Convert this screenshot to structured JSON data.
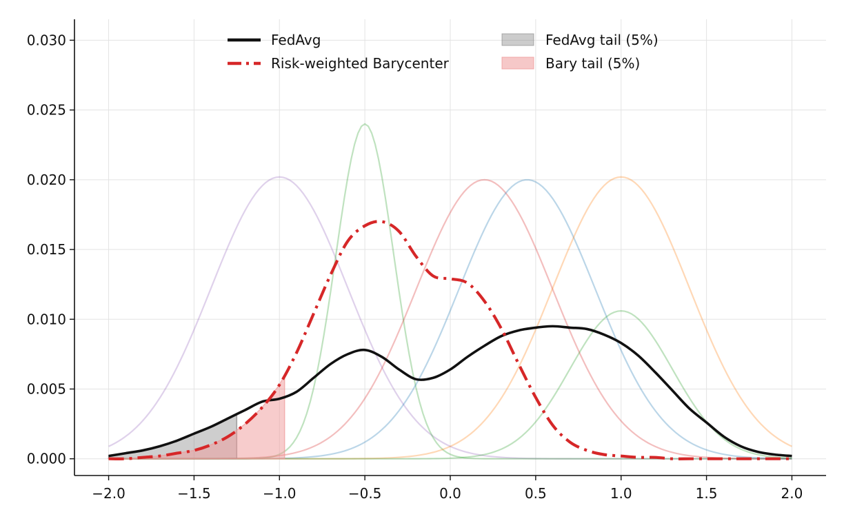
{
  "chart_data": {
    "type": "line",
    "title": "",
    "xlabel": "",
    "ylabel": "",
    "xlim": [
      -2.2,
      2.2
    ],
    "ylim": [
      -0.0012,
      0.0315
    ],
    "xticks": [
      -2.0,
      -1.5,
      -1.0,
      -0.5,
      0.0,
      0.5,
      1.0,
      1.5,
      2.0
    ],
    "xtick_labels": [
      "−2.0",
      "−1.5",
      "−1.0",
      "−0.5",
      "0.0",
      "0.5",
      "1.0",
      "1.5",
      "2.0"
    ],
    "yticks": [
      0.0,
      0.005,
      0.01,
      0.015,
      0.02,
      0.025,
      0.03
    ],
    "ytick_labels": [
      "0.000",
      "0.005",
      "0.010",
      "0.015",
      "0.020",
      "0.025",
      "0.030"
    ],
    "grid": true,
    "legend_position": "top-center",
    "series": [
      {
        "name": "FedAvg",
        "style": "solid",
        "color": "#111111",
        "x": [
          -2.0,
          -1.9,
          -1.8,
          -1.7,
          -1.6,
          -1.5,
          -1.4,
          -1.3,
          -1.2,
          -1.1,
          -1.0,
          -0.9,
          -0.8,
          -0.7,
          -0.6,
          -0.5,
          -0.4,
          -0.3,
          -0.2,
          -0.1,
          0.0,
          0.1,
          0.2,
          0.3,
          0.4,
          0.5,
          0.6,
          0.7,
          0.8,
          0.9,
          1.0,
          1.1,
          1.2,
          1.3,
          1.4,
          1.5,
          1.6,
          1.7,
          1.8,
          1.9,
          2.0
        ],
        "y": [
          0.0002,
          0.0004,
          0.0006,
          0.0009,
          0.0013,
          0.0018,
          0.0023,
          0.0029,
          0.0035,
          0.0041,
          0.0043,
          0.0048,
          0.0058,
          0.0068,
          0.0075,
          0.0078,
          0.0073,
          0.0064,
          0.0057,
          0.0058,
          0.0064,
          0.0073,
          0.0081,
          0.0088,
          0.0092,
          0.0094,
          0.0095,
          0.0094,
          0.0093,
          0.0089,
          0.0083,
          0.0074,
          0.0062,
          0.0049,
          0.0036,
          0.0026,
          0.0016,
          0.0009,
          0.0005,
          0.0003,
          0.0002
        ]
      },
      {
        "name": "Risk-weighted Barycenter",
        "style": "dashdot",
        "color": "#d62728",
        "x": [
          -2.0,
          -1.9,
          -1.8,
          -1.7,
          -1.6,
          -1.5,
          -1.4,
          -1.3,
          -1.2,
          -1.1,
          -1.0,
          -0.9,
          -0.8,
          -0.7,
          -0.6,
          -0.5,
          -0.4,
          -0.3,
          -0.2,
          -0.1,
          0.0,
          0.1,
          0.2,
          0.3,
          0.4,
          0.5,
          0.6,
          0.7,
          0.8,
          0.9,
          1.0,
          1.1,
          1.2,
          1.3,
          1.4,
          1.5,
          1.6,
          1.7,
          1.8,
          1.9,
          2.0
        ],
        "y": [
          0.0,
          0.0,
          0.0001,
          0.0002,
          0.0004,
          0.0006,
          0.001,
          0.0016,
          0.0025,
          0.0037,
          0.0053,
          0.0076,
          0.0104,
          0.0132,
          0.0156,
          0.0167,
          0.017,
          0.0163,
          0.0145,
          0.0131,
          0.0129,
          0.0126,
          0.0113,
          0.0093,
          0.0068,
          0.0044,
          0.0024,
          0.0012,
          0.0006,
          0.0003,
          0.0002,
          0.0001,
          0.0001,
          0.0,
          0.0,
          0.0,
          0.0,
          0.0,
          0.0,
          0.0,
          0.0
        ]
      }
    ],
    "client_curves": [
      {
        "color": "#9467bd",
        "mean": -1.0,
        "sigma": 0.4,
        "peak": 0.0202
      },
      {
        "color": "#2ca02c",
        "mean": -0.5,
        "sigma": 0.17,
        "peak": 0.024
      },
      {
        "color": "#d62728",
        "mean": 0.2,
        "sigma": 0.4,
        "peak": 0.02
      },
      {
        "color": "#1f77b4",
        "mean": 0.45,
        "sigma": 0.4,
        "peak": 0.02
      },
      {
        "color": "#ff7f0e",
        "mean": 1.0,
        "sigma": 0.4,
        "peak": 0.0202
      },
      {
        "color": "#2ca02c",
        "mean": 1.0,
        "sigma": 0.3,
        "peak": 0.0106
      }
    ],
    "tails": [
      {
        "name": "FedAvg tail (5%)",
        "series": "FedAvg",
        "x_to": -1.25,
        "color": "#7f7f7f"
      },
      {
        "name": "Bary tail (5%)",
        "series": "Risk-weighted Barycenter",
        "x_to": -0.97,
        "color": "#ef9a9a"
      }
    ]
  }
}
